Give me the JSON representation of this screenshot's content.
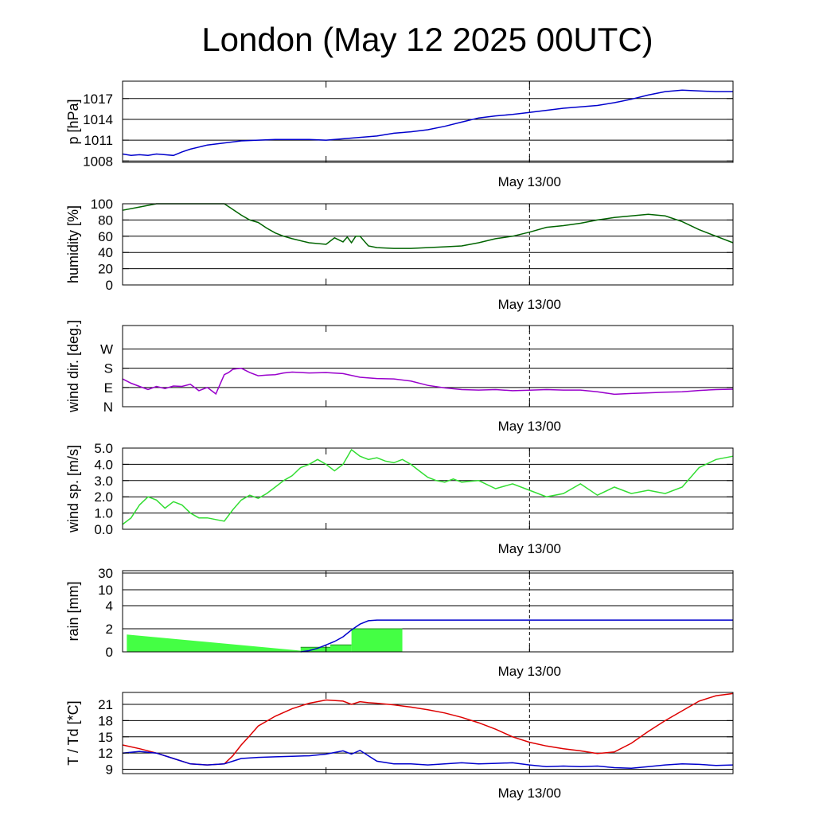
{
  "title": "London (May 12 2025 00UTC)",
  "chart_data": [
    {
      "type": "line",
      "ylabel": "p [hPa]",
      "xtick_label": "May 13/00",
      "ylim": [
        1007.8,
        1019.5
      ],
      "yticks": [
        1008,
        1011,
        1014,
        1017
      ],
      "ytick_labels": [
        "1008",
        "1011",
        "1014",
        "1017"
      ],
      "grid_y": [
        1008,
        1011,
        1014,
        1017
      ],
      "series": [
        {
          "color": "#0000cc",
          "x": [
            0,
            1,
            2,
            3,
            4,
            5,
            6,
            7,
            8,
            9,
            10,
            12,
            14,
            16,
            18,
            20,
            22,
            24,
            26,
            28,
            30,
            32,
            34,
            36,
            38,
            40,
            42,
            44,
            46,
            48,
            50,
            52,
            54,
            56,
            58,
            60,
            62,
            64,
            66,
            68,
            70,
            72
          ],
          "y": [
            1009.0,
            1008.8,
            1008.9,
            1008.8,
            1009.0,
            1008.9,
            1008.8,
            1009.3,
            1009.7,
            1010.0,
            1010.3,
            1010.6,
            1010.9,
            1011.0,
            1011.1,
            1011.1,
            1011.1,
            1011.0,
            1011.2,
            1011.4,
            1011.6,
            1012.0,
            1012.2,
            1012.5,
            1013.0,
            1013.6,
            1014.2,
            1014.5,
            1014.7,
            1015.0,
            1015.3,
            1015.6,
            1015.8,
            1016.0,
            1016.4,
            1016.9,
            1017.5,
            1018.0,
            1018.2,
            1018.1,
            1018.0,
            1018.0
          ]
        }
      ]
    },
    {
      "type": "line",
      "ylabel": "humidity [%]",
      "xtick_label": "May 13/00",
      "ylim": [
        0,
        100
      ],
      "yticks": [
        0,
        20,
        40,
        60,
        80,
        100
      ],
      "ytick_labels": [
        "0",
        "20",
        "40",
        "60",
        "80",
        "100"
      ],
      "grid_y": [
        20,
        40,
        60,
        80
      ],
      "series": [
        {
          "color": "#006400",
          "x": [
            0,
            2,
            4,
            6,
            8,
            10,
            12,
            13,
            14,
            15,
            16,
            17,
            18,
            19,
            20,
            22,
            24,
            25,
            26,
            26.5,
            27,
            27.5,
            28,
            29,
            30,
            32,
            34,
            36,
            38,
            40,
            42,
            44,
            46,
            48,
            50,
            52,
            54,
            56,
            58,
            60,
            62,
            64,
            66,
            68,
            70,
            72
          ],
          "y": [
            92,
            96,
            100,
            100,
            100,
            100,
            100,
            93,
            86,
            80,
            77,
            70,
            64,
            60,
            57,
            52,
            50,
            58,
            53,
            59,
            52,
            60,
            60,
            48,
            46,
            45,
            45,
            46,
            47,
            48,
            52,
            57,
            60,
            65,
            71,
            73,
            76,
            80,
            83,
            85,
            87,
            85,
            78,
            68,
            60,
            52
          ]
        }
      ]
    },
    {
      "type": "line",
      "ylabel": "wind dir. [deg.]",
      "xtick_label": "May 13/00",
      "ylim": [
        0,
        380
      ],
      "yticks": [
        0,
        90,
        180,
        270
      ],
      "ytick_labels": [
        "N",
        "E",
        "S",
        "W"
      ],
      "grid_y": [
        90,
        180,
        270
      ],
      "series": [
        {
          "color": "#9900cc",
          "x": [
            0,
            1,
            2,
            3,
            4,
            5,
            6,
            7,
            8,
            9,
            10,
            11,
            12,
            12.5,
            13,
            13.5,
            14,
            15,
            16,
            17,
            18,
            19,
            20,
            22,
            24,
            26,
            28,
            30,
            32,
            34,
            36,
            38,
            40,
            42,
            44,
            46,
            48,
            50,
            52,
            54,
            56,
            58,
            60,
            62,
            64,
            66,
            68,
            70,
            72
          ],
          "y": [
            130,
            110,
            95,
            80,
            95,
            85,
            97,
            95,
            105,
            75,
            90,
            60,
            150,
            160,
            175,
            178,
            180,
            160,
            145,
            148,
            150,
            158,
            162,
            158,
            160,
            155,
            138,
            132,
            130,
            120,
            100,
            88,
            80,
            78,
            80,
            75,
            77,
            80,
            78,
            78,
            70,
            58,
            62,
            65,
            68,
            70,
            76,
            80,
            82
          ]
        }
      ]
    },
    {
      "type": "line",
      "ylabel": "wind sp. [m/s]",
      "xtick_label": "May 13/00",
      "ylim": [
        0,
        5.0
      ],
      "yticks": [
        0.0,
        1.0,
        2.0,
        3.0,
        4.0,
        5.0
      ],
      "ytick_labels": [
        "0.0",
        "1.0",
        "2.0",
        "3.0",
        "4.0",
        "5.0"
      ],
      "grid_y": [
        1.0,
        2.0,
        3.0,
        4.0
      ],
      "series": [
        {
          "color": "#33dd33",
          "x": [
            0,
            1,
            2,
            3,
            4,
            5,
            6,
            7,
            8,
            9,
            10,
            11,
            12,
            13,
            14,
            15,
            16,
            17,
            18,
            19,
            20,
            21,
            22,
            23,
            24,
            25,
            26,
            27,
            28,
            29,
            30,
            31,
            32,
            33,
            34,
            35,
            36,
            37,
            38,
            39,
            40,
            42,
            44,
            46,
            48,
            50,
            52,
            54,
            56,
            58,
            60,
            62,
            64,
            66,
            68,
            70,
            72
          ],
          "y": [
            0.3,
            0.7,
            1.5,
            2.0,
            1.8,
            1.3,
            1.7,
            1.5,
            1.0,
            0.7,
            0.7,
            0.6,
            0.5,
            1.2,
            1.8,
            2.1,
            1.9,
            2.2,
            2.6,
            3.0,
            3.3,
            3.8,
            4.0,
            4.3,
            4.0,
            3.6,
            4.0,
            4.9,
            4.5,
            4.3,
            4.4,
            4.2,
            4.1,
            4.3,
            4.0,
            3.6,
            3.2,
            3.0,
            2.9,
            3.1,
            2.9,
            3.0,
            2.5,
            2.8,
            2.4,
            2.0,
            2.2,
            2.8,
            2.1,
            2.6,
            2.2,
            2.4,
            2.2,
            2.6,
            3.8,
            4.3,
            4.5
          ]
        }
      ]
    },
    {
      "type": "bar",
      "ylabel": "rain [mm]",
      "xtick_label": "May 13/00",
      "y_scale": "nonlinear",
      "yticks": [
        0,
        2,
        4,
        10,
        30
      ],
      "ytick_labels": [
        "0",
        "2",
        "4",
        "10",
        "30"
      ],
      "grid_y": [
        2,
        4,
        10,
        30
      ],
      "bars": [
        {
          "x0": 21,
          "x1": 24.5,
          "value": 0.4
        },
        {
          "x0": 24.5,
          "x1": 27,
          "value": 0.6
        },
        {
          "x0": 27,
          "x1": 33,
          "value": 2.0
        }
      ],
      "wedge": {
        "x0": 0.5,
        "x1": 21,
        "value_start": 1.5,
        "value_end": 0.1
      },
      "series": [
        {
          "color": "#0000cc",
          "name": "",
          "x": [
            21,
            22,
            23,
            24,
            25,
            26,
            27,
            28,
            29,
            30,
            32,
            36,
            40,
            48,
            56,
            64,
            72
          ],
          "y": [
            0.0,
            0.1,
            0.3,
            0.6,
            0.9,
            1.3,
            1.9,
            2.4,
            2.7,
            2.75,
            2.75,
            2.75,
            2.75,
            2.75,
            2.75,
            2.75,
            2.75
          ]
        }
      ]
    },
    {
      "type": "line",
      "ylabel": "T / Td [*C]",
      "xtick_label": "May 13/00",
      "ylim": [
        8.2,
        23.2
      ],
      "yticks": [
        9,
        12,
        15,
        18,
        21
      ],
      "ytick_labels": [
        "9",
        "12",
        "15",
        "18",
        "21"
      ],
      "grid_y": [
        9,
        12,
        15,
        18,
        21
      ],
      "series": [
        {
          "color": "#dd0000",
          "x": [
            0,
            2,
            4,
            6,
            8,
            10,
            12,
            13,
            14,
            15,
            16,
            18,
            20,
            22,
            24,
            26,
            27,
            28,
            29,
            30,
            32,
            34,
            36,
            38,
            40,
            42,
            44,
            46,
            48,
            50,
            52,
            54,
            56,
            58,
            60,
            62,
            64,
            66,
            68,
            70,
            72
          ],
          "y": [
            13.5,
            12.8,
            12.0,
            11.0,
            10.0,
            9.8,
            10.0,
            11.5,
            13.5,
            15.2,
            17.0,
            18.8,
            20.2,
            21.2,
            21.8,
            21.6,
            21.0,
            21.5,
            21.3,
            21.2,
            20.9,
            20.5,
            20.0,
            19.4,
            18.6,
            17.6,
            16.4,
            15.0,
            14.0,
            13.3,
            12.8,
            12.4,
            11.9,
            12.2,
            13.8,
            16.0,
            18.0,
            19.8,
            21.6,
            22.6,
            23.0
          ]
        },
        {
          "color": "#0000cc",
          "x": [
            0,
            2,
            4,
            6,
            8,
            10,
            12,
            13,
            14,
            16,
            18,
            20,
            22,
            24,
            26,
            27,
            28,
            29,
            30,
            32,
            34,
            36,
            38,
            40,
            42,
            44,
            46,
            48,
            50,
            52,
            54,
            56,
            58,
            60,
            62,
            64,
            66,
            68,
            70,
            72
          ],
          "y": [
            12.0,
            12.3,
            12.0,
            11.0,
            10.0,
            9.8,
            10.0,
            10.5,
            11.0,
            11.2,
            11.3,
            11.4,
            11.5,
            11.8,
            12.4,
            11.8,
            12.5,
            11.5,
            10.5,
            10.0,
            10.0,
            9.8,
            10.0,
            10.2,
            10.0,
            10.1,
            10.2,
            9.8,
            9.5,
            9.6,
            9.5,
            9.6,
            9.3,
            9.2,
            9.5,
            9.8,
            10.0,
            9.9,
            9.7,
            9.8
          ]
        }
      ]
    }
  ]
}
